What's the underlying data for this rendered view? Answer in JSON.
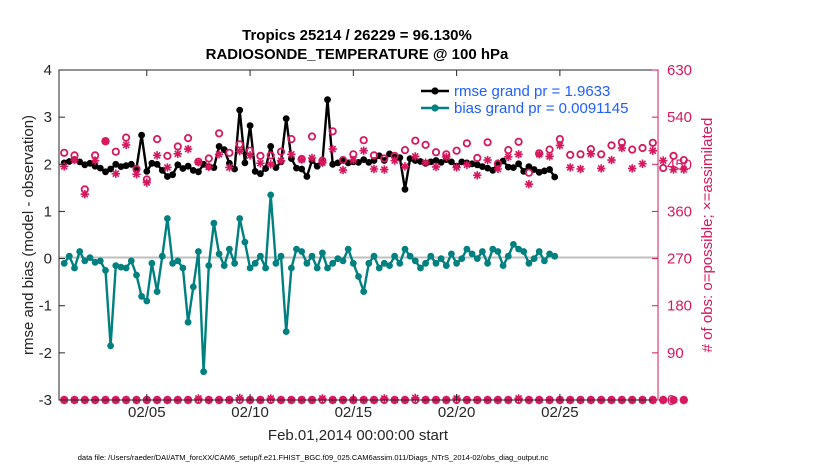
{
  "colors": {
    "rmse": "#000000",
    "bias": "#00807f",
    "obs": "#d6185f",
    "zero": "#bfbfbf",
    "legend_text": "#1f5fff",
    "axis": "#262626"
  },
  "chart_data": {
    "type": "line",
    "title": "Tropics 25214 / 26229 = 96.130%",
    "subtitle": "RADIOSONDE_TEMPERATURE @ 100 hPa",
    "xlabel": "Feb.01,2014 00:00:00 start",
    "ylabel": "rmse and bias (model - observation)",
    "ylabel_right": "# of obs: o=possible; ×=assimilated",
    "x_ticks": [
      "02/05",
      "02/10",
      "02/15",
      "02/20",
      "02/25"
    ],
    "x_tick_days": [
      5,
      10,
      15,
      20,
      25
    ],
    "xlim": [
      0.75,
      29.75
    ],
    "ylim": [
      -3,
      4
    ],
    "yticks": [
      -3,
      -2,
      -1,
      0,
      1,
      2,
      3,
      4
    ],
    "ylim_right": [
      0,
      630
    ],
    "yticks_right": [
      0,
      90,
      180,
      270,
      360,
      450,
      540,
      630
    ],
    "legend": [
      {
        "label": "rmse grand pr = 1.9633"
      },
      {
        "label": "bias grand pr = 0.0091145"
      }
    ],
    "footer": "data file: /Users/raeder/DAI/ATM_forcXX/CAM6_setup/f.e21.FHIST_BGC.f09_025.CAM6assim.011/Diags_NTrS_2014-02/obs_diag_output.nc",
    "series": [
      {
        "name": "rmse",
        "axis": "left",
        "start_day": 1.0,
        "step": 0.25,
        "values": [
          2.03,
          2.06,
          2.1,
          2.05,
          1.99,
          2.02,
          1.96,
          1.92,
          1.84,
          1.9,
          2.0,
          1.95,
          1.97,
          2.0,
          1.92,
          2.62,
          1.85,
          2.02,
          2.0,
          1.87,
          1.74,
          1.78,
          1.99,
          1.91,
          1.96,
          1.87,
          1.84,
          2.0,
          1.95,
          1.93,
          2.38,
          2.31,
          2.02,
          1.9,
          3.15,
          2.03,
          2.82,
          1.85,
          1.8,
          1.91,
          2.38,
          1.93,
          2.05,
          2.97,
          2.12,
          1.92,
          1.9,
          1.74,
          2.08,
          1.96,
          2.04,
          3.37,
          2.0,
          2.03,
          2.09,
          2.03,
          2.05,
          2.04,
          2.1,
          2.04,
          2.08,
          2.18,
          2.08,
          2.22,
          2.15,
          2.14,
          1.47,
          2.12,
          2.08,
          2.06,
          2.02,
          2.05,
          2.08,
          2.04,
          2.1,
          2.05,
          1.96,
          2.05,
          2.03,
          2.01,
          1.99,
          1.95,
          1.92,
          1.87,
          2.03,
          2.07,
          1.94,
          1.93,
          2.01,
          1.85,
          1.95,
          1.89,
          1.83,
          1.86,
          1.89,
          1.73
        ]
      },
      {
        "name": "bias",
        "axis": "left",
        "start_day": 1.0,
        "step": 0.25,
        "values": [
          -0.1,
          0.05,
          -0.2,
          0.15,
          -0.05,
          0.02,
          -0.08,
          -0.05,
          -0.25,
          -1.85,
          -0.15,
          -0.18,
          -0.2,
          -0.05,
          -0.35,
          -0.8,
          -0.9,
          -0.1,
          -0.7,
          0.05,
          0.85,
          -0.1,
          -0.05,
          -0.2,
          -1.35,
          -0.6,
          0.15,
          -2.4,
          -0.15,
          0.75,
          0.1,
          -0.15,
          0.2,
          -0.1,
          0.85,
          0.35,
          -0.2,
          -0.1,
          0.05,
          -0.2,
          1.35,
          -0.1,
          0.05,
          -1.55,
          -0.2,
          0.2,
          0.15,
          -0.1,
          0.05,
          -0.2,
          0.12,
          -0.2,
          -0.1,
          0.0,
          -0.05,
          0.2,
          -0.1,
          -0.38,
          -0.7,
          -0.1,
          0.05,
          -0.2,
          -0.1,
          -0.15,
          0.05,
          -0.1,
          0.2,
          0.05,
          -0.05,
          -0.2,
          -0.1,
          0.05,
          -0.1,
          0.0,
          -0.15,
          0.1,
          -0.1,
          0.0,
          0.2,
          0.1,
          0.0,
          0.15,
          -0.1,
          0.2,
          0.15,
          -0.15,
          0.05,
          0.3,
          0.2,
          0.15,
          -0.1,
          0.0,
          0.15,
          -0.05,
          0.1,
          0.05
        ]
      },
      {
        "name": "obs possible",
        "axis": "right",
        "start_day": 1.0,
        "step": 0.5,
        "values": [
          472,
          467,
          402,
          467,
          494,
          474,
          501,
          441,
          421,
          498,
          466,
          484,
          500,
          455,
          461,
          509,
          472,
          488,
          476,
          466,
          467,
          474,
          498,
          460,
          503,
          457,
          513,
          458,
          469,
          496,
          467,
          461,
          466,
          477,
          495,
          487,
          473,
          469,
          476,
          490,
          462,
          492,
          451,
          477,
          493,
          434,
          471,
          478,
          498,
          468,
          469,
          479,
          469,
          486,
          492,
          478,
          481,
          491,
          443,
          466,
          458
        ]
      },
      {
        "name": "obs assimilated",
        "axis": "right",
        "start_day": 1.0,
        "step": 0.5,
        "values": [
          446,
          458,
          393,
          457,
          494,
          432,
          487,
          431,
          415,
          467,
          444,
          470,
          479,
          454,
          445,
          469,
          444,
          475,
          467,
          452,
          450,
          457,
          469,
          459,
          462,
          453,
          479,
          439,
          458,
          476,
          441,
          440,
          457,
          446,
          465,
          453,
          445,
          464,
          444,
          449,
          429,
          458,
          441,
          464,
          469,
          412,
          469,
          465,
          486,
          444,
          441,
          470,
          442,
          458,
          481,
          442,
          451,
          476,
          457,
          440,
          440
        ]
      },
      {
        "name": "obs bottom possible",
        "axis": "right",
        "start_day": 1.0,
        "step": 0.5,
        "values": [
          0,
          0,
          0,
          0,
          0,
          0,
          0,
          0,
          0,
          0,
          0,
          0,
          0,
          0,
          0,
          0,
          0,
          0,
          0,
          0,
          0,
          0,
          0,
          0,
          0,
          0,
          0,
          0,
          0,
          0,
          0,
          0,
          0,
          0,
          0,
          0,
          0,
          0,
          0,
          0,
          0,
          0,
          0,
          0,
          0,
          0,
          0,
          0,
          0,
          0,
          0,
          0,
          0,
          0,
          0,
          0,
          0,
          0,
          0,
          0,
          0
        ]
      },
      {
        "name": "obs bottom assimilated",
        "axis": "right",
        "start_day": 1.0,
        "step": 0.5,
        "values": [
          0,
          0,
          0,
          0,
          0,
          0,
          0,
          0,
          0,
          0,
          0,
          0,
          0,
          3,
          0,
          0,
          0,
          4,
          0,
          0,
          3,
          0,
          0,
          0,
          0,
          3,
          0,
          0,
          0,
          0,
          0,
          3,
          0,
          0,
          4,
          0,
          0,
          0,
          3,
          0,
          0,
          0,
          0,
          0,
          3,
          0,
          0,
          0,
          0,
          0,
          0,
          0,
          0,
          0,
          0,
          0,
          0,
          0,
          0,
          0,
          0
        ]
      }
    ]
  }
}
